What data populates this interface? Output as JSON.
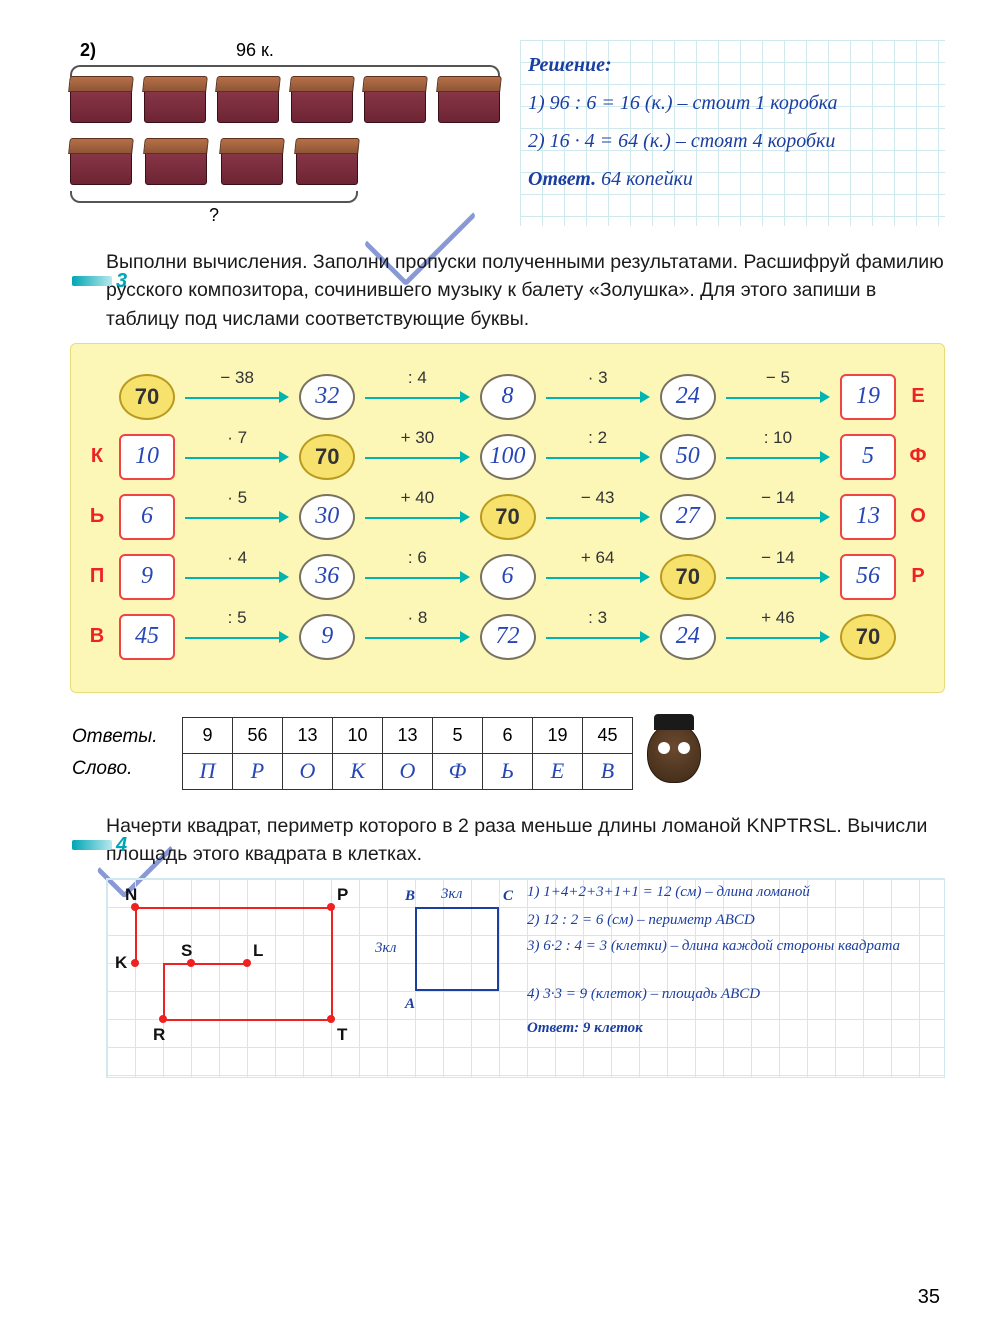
{
  "page_number": "35",
  "ex2": {
    "label": "2)",
    "header_value": "96 к.",
    "question_mark": "?",
    "solution_title": "Решение:",
    "line1": "1) 96 : 6 = 16 (к.) – стоит 1 коробка",
    "line2": "2) 16 · 4 = 64 (к.) – стоят 4 коробки",
    "answer_label": "Ответ.",
    "answer_text": "64 копейки"
  },
  "ex3": {
    "num": "3",
    "text": "Выполни вычисления. Заполни пропуски полученными результатами. Расшифруй фамилию русского композитора, сочинившего музыку к балету «Золушка». Для этого запиши в таблицу под числами соответствующие буквы.",
    "rows": [
      {
        "left": "",
        "cells": [
          "70",
          "32",
          "8",
          "24",
          "19"
        ],
        "ops": [
          "− 38",
          ": 4",
          "· 3",
          "− 5"
        ],
        "fixed": [
          true,
          false,
          false,
          false,
          false
        ],
        "sq": [
          false,
          false,
          false,
          false,
          true
        ],
        "right": "Е"
      },
      {
        "left": "К",
        "cells": [
          "10",
          "70",
          "100",
          "50",
          "5"
        ],
        "ops": [
          "· 7",
          "+ 30",
          ": 2",
          ": 10"
        ],
        "fixed": [
          false,
          true,
          false,
          false,
          false
        ],
        "sq": [
          true,
          false,
          false,
          false,
          true
        ],
        "right": "Ф"
      },
      {
        "left": "Ь",
        "cells": [
          "6",
          "30",
          "70",
          "27",
          "13"
        ],
        "ops": [
          "· 5",
          "+ 40",
          "− 43",
          "− 14"
        ],
        "fixed": [
          false,
          false,
          true,
          false,
          false
        ],
        "sq": [
          true,
          false,
          false,
          false,
          true
        ],
        "right": "О"
      },
      {
        "left": "П",
        "cells": [
          "9",
          "36",
          "6",
          "70",
          "56"
        ],
        "ops": [
          "· 4",
          ": 6",
          "+ 64",
          "− 14"
        ],
        "fixed": [
          false,
          false,
          false,
          true,
          false
        ],
        "sq": [
          true,
          false,
          false,
          false,
          true
        ],
        "right": "Р"
      },
      {
        "left": "В",
        "cells": [
          "45",
          "9",
          "72",
          "24",
          "70"
        ],
        "ops": [
          ": 5",
          "· 8",
          ": 3",
          "+ 46"
        ],
        "fixed": [
          false,
          false,
          false,
          false,
          true
        ],
        "sq": [
          true,
          false,
          false,
          false,
          false
        ],
        "right": ""
      }
    ],
    "answers_label": "Ответы.",
    "word_label": "Слово.",
    "answers": [
      "9",
      "56",
      "13",
      "10",
      "13",
      "5",
      "6",
      "19",
      "45"
    ],
    "word": [
      "П",
      "Р",
      "О",
      "К",
      "О",
      "Ф",
      "Ь",
      "Е",
      "В"
    ]
  },
  "ex4": {
    "num": "4",
    "text": "Начерти квадрат, периметр которого в 2 раза меньше длины ломаной KNPTRSL. Вычисли площадь этого квадрата в клетках.",
    "points": {
      "N": "N",
      "P": "P",
      "K": "K",
      "S": "S",
      "L": "L",
      "R": "R",
      "T": "T",
      "A": "A",
      "B": "B",
      "C": "C"
    },
    "dims": {
      "d1": "3кл",
      "d2": "3кл"
    },
    "calc1": "1) 1+4+2+3+1+1 = 12 (см) – длина ломаной",
    "calc2": "2) 12 : 2 = 6 (см) – периметр ABCD",
    "calc3": "3) 6·2 : 4 = 3 (клетки) – длина каждой стороны квадрата",
    "calc4": "4) 3·3 = 9 (клеток) – площадь ABCD",
    "ans": "Ответ: 9 клеток"
  }
}
